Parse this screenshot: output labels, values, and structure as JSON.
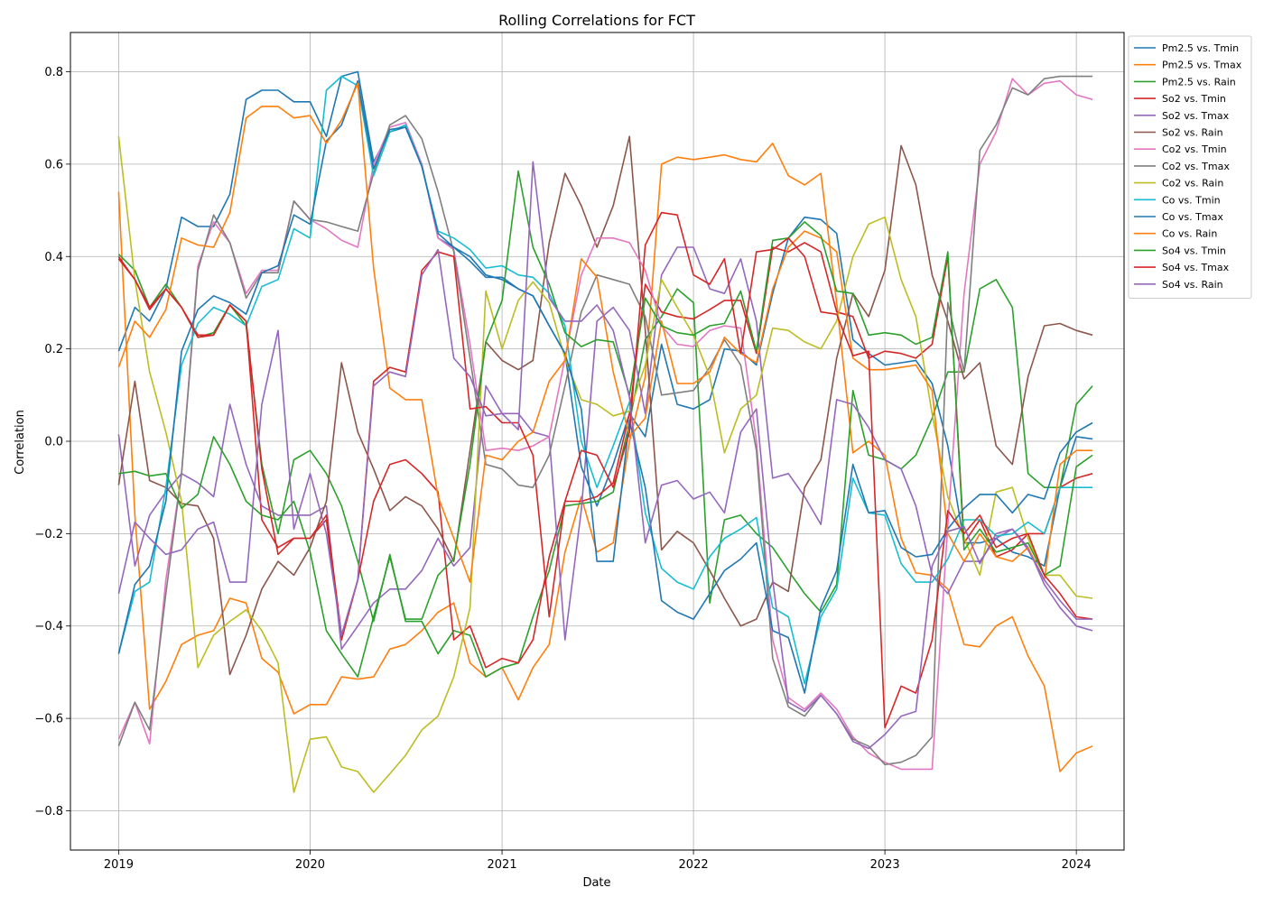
{
  "chart_data": {
    "type": "line",
    "title": "Rolling Correlations for FCT",
    "xlabel": "Date",
    "ylabel": "Correlation",
    "x_axis_kind": "date",
    "x_ticks": [
      "2019",
      "2020",
      "2021",
      "2022",
      "2023",
      "2024"
    ],
    "y_ticks": [
      "−0.8",
      "−0.6",
      "−0.4",
      "−0.2",
      "0.0",
      "0.2",
      "0.4",
      "0.6",
      "0.8"
    ],
    "xlim": [
      "2018-10-01",
      "2024-04-01"
    ],
    "ylim": [
      -0.885,
      0.885
    ],
    "grid": true,
    "legend_position": "upper right, outside plot area",
    "x": [
      "2019-01",
      "2019-02",
      "2019-03",
      "2019-04",
      "2019-05",
      "2019-06",
      "2019-07",
      "2019-08",
      "2019-09",
      "2019-10",
      "2019-11",
      "2019-12",
      "2020-01",
      "2020-02",
      "2020-03",
      "2020-04",
      "2020-05",
      "2020-06",
      "2020-07",
      "2020-08",
      "2020-09",
      "2020-10",
      "2020-11",
      "2020-12",
      "2021-01",
      "2021-02",
      "2021-03",
      "2021-04",
      "2021-05",
      "2021-06",
      "2021-07",
      "2021-08",
      "2021-09",
      "2021-10",
      "2021-11",
      "2021-12",
      "2022-01",
      "2022-02",
      "2022-03",
      "2022-04",
      "2022-05",
      "2022-06",
      "2022-07",
      "2022-08",
      "2022-09",
      "2022-10",
      "2022-11",
      "2022-12",
      "2023-01",
      "2023-02",
      "2023-03",
      "2023-04",
      "2023-05",
      "2023-06",
      "2023-07",
      "2023-08",
      "2023-09",
      "2023-10",
      "2023-11",
      "2023-12",
      "2024-01",
      "2024-02"
    ],
    "series": [
      {
        "name": "Pm2.5 vs. Tmin",
        "color": "#1f77b4",
        "values": [
          0.195,
          0.29,
          0.26,
          0.33,
          0.485,
          0.465,
          0.465,
          0.535,
          0.74,
          0.76,
          0.76,
          0.735,
          0.735,
          0.66,
          0.79,
          0.8,
          0.605,
          0.67,
          0.68,
          0.6,
          0.44,
          0.42,
          0.39,
          0.355,
          0.355,
          0.33,
          0.315,
          0.25,
          0.19,
          -0.055,
          -0.14,
          -0.05,
          0.06,
          0.01,
          0.21,
          0.08,
          0.07,
          0.09,
          0.2,
          0.195,
          0.165,
          0.32,
          0.44,
          0.485,
          0.48,
          0.45,
          0.22,
          0.19,
          0.165,
          0.17,
          0.175,
          0.125,
          -0.01,
          -0.22,
          -0.22,
          -0.21,
          -0.24,
          -0.25,
          -0.27,
          -0.1,
          0.01,
          0.005
        ]
      },
      {
        "name": "Pm2.5 vs. Tmax",
        "color": "#ff7f0e",
        "values": [
          0.54,
          -0.16,
          -0.58,
          -0.52,
          -0.44,
          -0.42,
          -0.41,
          -0.34,
          -0.35,
          -0.47,
          -0.5,
          -0.59,
          -0.57,
          -0.57,
          -0.51,
          -0.515,
          -0.51,
          -0.45,
          -0.44,
          -0.41,
          -0.37,
          -0.35,
          -0.48,
          -0.51,
          -0.49,
          -0.56,
          -0.49,
          -0.44,
          -0.24,
          -0.12,
          -0.24,
          -0.22,
          0.0,
          0.14,
          0.6,
          0.615,
          0.61,
          0.615,
          0.62,
          0.61,
          0.605,
          0.645,
          0.575,
          0.555,
          0.58,
          0.3,
          -0.025,
          0.0,
          -0.03,
          -0.21,
          -0.285,
          -0.29,
          -0.32,
          -0.44,
          -0.445,
          -0.4,
          -0.38,
          -0.465,
          -0.53,
          -0.715,
          -0.675,
          -0.66
        ]
      },
      {
        "name": "Pm2.5 vs. Rain",
        "color": "#2ca02c",
        "values": [
          0.405,
          0.37,
          0.29,
          0.34,
          0.29,
          0.225,
          0.235,
          0.295,
          0.25,
          -0.05,
          -0.2,
          -0.04,
          -0.02,
          -0.07,
          -0.14,
          -0.26,
          -0.39,
          -0.245,
          -0.39,
          -0.39,
          -0.46,
          -0.41,
          -0.42,
          -0.51,
          -0.49,
          -0.48,
          -0.38,
          -0.28,
          -0.14,
          -0.135,
          -0.13,
          -0.11,
          0.04,
          0.22,
          0.27,
          0.33,
          0.3,
          -0.35,
          -0.17,
          -0.16,
          -0.2,
          -0.23,
          -0.28,
          -0.33,
          -0.37,
          -0.31,
          0.11,
          -0.03,
          -0.04,
          -0.06,
          -0.03,
          0.05,
          0.15,
          0.15,
          0.33,
          0.35,
          0.29,
          -0.07,
          -0.1,
          -0.1,
          0.08,
          0.12
        ]
      },
      {
        "name": "So2 vs. Tmin",
        "color": "#d62728",
        "values": [
          0.4,
          0.35,
          0.29,
          0.33,
          0.29,
          0.23,
          0.23,
          0.295,
          0.26,
          -0.17,
          -0.23,
          -0.21,
          -0.21,
          -0.17,
          -0.43,
          -0.3,
          -0.13,
          -0.05,
          -0.04,
          -0.07,
          -0.11,
          -0.43,
          -0.4,
          -0.49,
          -0.47,
          -0.48,
          -0.43,
          -0.25,
          -0.13,
          -0.13,
          -0.12,
          -0.09,
          0.06,
          0.34,
          0.28,
          0.27,
          0.265,
          0.285,
          0.305,
          0.305,
          0.19,
          0.42,
          0.41,
          0.43,
          0.41,
          0.28,
          0.27,
          0.18,
          0.195,
          0.19,
          0.18,
          0.21,
          0.4,
          -0.22,
          -0.17,
          -0.25,
          -0.235,
          -0.2,
          -0.2,
          -0.1,
          -0.08,
          -0.07
        ]
      },
      {
        "name": "So2 vs. Tmax",
        "color": "#9467bd",
        "values": [
          0.015,
          -0.27,
          -0.16,
          -0.11,
          -0.07,
          -0.09,
          -0.12,
          0.08,
          -0.05,
          -0.14,
          -0.16,
          -0.16,
          -0.16,
          -0.14,
          -0.45,
          -0.4,
          -0.35,
          -0.32,
          -0.32,
          -0.28,
          -0.21,
          -0.27,
          -0.23,
          0.12,
          0.06,
          0.06,
          0.02,
          0.01,
          -0.43,
          -0.15,
          0.26,
          0.29,
          0.24,
          0.06,
          0.36,
          0.42,
          0.42,
          0.33,
          0.32,
          0.395,
          0.26,
          -0.08,
          -0.07,
          -0.12,
          -0.18,
          0.09,
          0.08,
          0.03,
          -0.04,
          -0.06,
          -0.14,
          -0.29,
          -0.33,
          -0.26,
          -0.26,
          -0.21,
          -0.19,
          -0.23,
          -0.31,
          -0.36,
          -0.4,
          -0.41
        ]
      },
      {
        "name": "So2 vs. Rain",
        "color": "#8c564b",
        "values": [
          -0.095,
          0.13,
          -0.085,
          -0.1,
          -0.135,
          -0.14,
          -0.21,
          -0.505,
          -0.42,
          -0.32,
          -0.26,
          -0.29,
          -0.23,
          -0.13,
          0.17,
          0.02,
          -0.06,
          -0.15,
          -0.12,
          -0.14,
          -0.19,
          -0.26,
          -0.02,
          0.215,
          0.175,
          0.155,
          0.175,
          0.43,
          0.58,
          0.51,
          0.42,
          0.51,
          0.66,
          0.24,
          -0.235,
          -0.195,
          -0.22,
          -0.28,
          -0.34,
          -0.4,
          -0.385,
          -0.305,
          -0.325,
          -0.1,
          -0.04,
          0.18,
          0.32,
          0.27,
          0.37,
          0.64,
          0.555,
          0.36,
          0.26,
          0.135,
          0.17,
          -0.01,
          -0.05,
          0.14,
          0.25,
          0.255,
          0.24,
          0.23
        ]
      },
      {
        "name": "Co2 vs. Tmin",
        "color": "#e377c2",
        "values": [
          -0.645,
          -0.565,
          -0.655,
          -0.3,
          -0.07,
          0.38,
          0.475,
          0.43,
          0.32,
          0.37,
          0.37,
          0.52,
          0.48,
          0.46,
          0.435,
          0.42,
          0.6,
          0.68,
          0.69,
          0.6,
          0.44,
          0.415,
          0.21,
          -0.02,
          -0.015,
          -0.02,
          -0.01,
          0.01,
          0.18,
          0.36,
          0.44,
          0.44,
          0.43,
          0.37,
          0.25,
          0.21,
          0.205,
          0.24,
          0.25,
          0.245,
          0.0,
          -0.43,
          -0.555,
          -0.58,
          -0.545,
          -0.58,
          -0.64,
          -0.675,
          -0.695,
          -0.71,
          -0.71,
          -0.71,
          -0.18,
          0.32,
          0.6,
          0.67,
          0.785,
          0.75,
          0.775,
          0.78,
          0.75,
          0.74
        ]
      },
      {
        "name": "Co2 vs. Tmax",
        "color": "#7f7f7f",
        "values": [
          -0.66,
          -0.565,
          -0.625,
          -0.33,
          -0.07,
          0.37,
          0.49,
          0.43,
          0.31,
          0.365,
          0.365,
          0.52,
          0.48,
          0.475,
          0.465,
          0.455,
          0.58,
          0.685,
          0.705,
          0.655,
          0.54,
          0.41,
          0.18,
          -0.05,
          -0.06,
          -0.095,
          -0.1,
          -0.03,
          0.12,
          0.28,
          0.36,
          0.35,
          0.34,
          0.27,
          0.1,
          0.105,
          0.11,
          0.16,
          0.22,
          0.165,
          -0.02,
          -0.47,
          -0.575,
          -0.595,
          -0.55,
          -0.59,
          -0.645,
          -0.66,
          -0.7,
          -0.695,
          -0.68,
          -0.64,
          0.3,
          0.15,
          0.63,
          0.685,
          0.765,
          0.75,
          0.785,
          0.79,
          0.79,
          0.79
        ]
      },
      {
        "name": "Co2 vs. Rain",
        "color": "#bcbd22",
        "values": [
          0.66,
          0.35,
          0.15,
          0.02,
          -0.13,
          -0.49,
          -0.42,
          -0.39,
          -0.365,
          -0.41,
          -0.48,
          -0.76,
          -0.645,
          -0.64,
          -0.705,
          -0.715,
          -0.76,
          -0.72,
          -0.68,
          -0.625,
          -0.595,
          -0.51,
          -0.36,
          0.325,
          0.2,
          0.305,
          0.345,
          0.3,
          0.18,
          0.09,
          0.08,
          0.055,
          0.065,
          0.165,
          0.35,
          0.29,
          0.23,
          0.14,
          -0.025,
          0.07,
          0.1,
          0.245,
          0.24,
          0.215,
          0.2,
          0.26,
          0.4,
          0.47,
          0.485,
          0.35,
          0.27,
          0.06,
          -0.12,
          -0.21,
          -0.29,
          -0.11,
          -0.1,
          -0.21,
          -0.29,
          -0.29,
          -0.335,
          -0.34
        ]
      },
      {
        "name": "Co vs. Tmin",
        "color": "#17becf",
        "values": [
          -0.46,
          -0.325,
          -0.305,
          -0.1,
          0.165,
          0.255,
          0.29,
          0.275,
          0.25,
          0.335,
          0.35,
          0.46,
          0.44,
          0.76,
          0.79,
          0.77,
          0.575,
          0.67,
          0.685,
          0.595,
          0.455,
          0.44,
          0.415,
          0.375,
          0.38,
          0.36,
          0.355,
          0.32,
          0.25,
          0.0,
          -0.1,
          -0.01,
          0.085,
          -0.155,
          -0.275,
          -0.305,
          -0.32,
          -0.25,
          -0.21,
          -0.19,
          -0.165,
          -0.36,
          -0.38,
          -0.525,
          -0.38,
          -0.32,
          -0.08,
          -0.155,
          -0.16,
          -0.265,
          -0.305,
          -0.305,
          -0.255,
          -0.17,
          -0.17,
          -0.205,
          -0.2,
          -0.175,
          -0.2,
          -0.1,
          -0.1,
          -0.1
        ]
      },
      {
        "name": "Co vs. Tmax",
        "color": "#1f77b4",
        "values": [
          -0.46,
          -0.31,
          -0.27,
          -0.13,
          0.195,
          0.285,
          0.315,
          0.3,
          0.275,
          0.365,
          0.38,
          0.49,
          0.47,
          0.65,
          0.685,
          0.78,
          0.59,
          0.675,
          0.68,
          0.595,
          0.45,
          0.42,
          0.4,
          0.36,
          0.35,
          0.33,
          0.315,
          0.25,
          0.19,
          0.07,
          -0.26,
          -0.26,
          0.045,
          -0.1,
          -0.345,
          -0.37,
          -0.385,
          -0.33,
          -0.28,
          -0.255,
          -0.22,
          -0.41,
          -0.425,
          -0.545,
          -0.36,
          -0.28,
          -0.05,
          -0.155,
          -0.15,
          -0.23,
          -0.25,
          -0.245,
          -0.19,
          -0.145,
          -0.115,
          -0.115,
          -0.155,
          -0.115,
          -0.125,
          -0.025,
          0.02,
          0.04
        ]
      },
      {
        "name": "Co vs. Rain",
        "color": "#ff7f0e",
        "values": [
          0.16,
          0.26,
          0.225,
          0.285,
          0.44,
          0.425,
          0.42,
          0.495,
          0.7,
          0.725,
          0.725,
          0.7,
          0.705,
          0.645,
          0.695,
          0.775,
          0.375,
          0.115,
          0.09,
          0.09,
          -0.12,
          -0.21,
          -0.305,
          -0.03,
          -0.04,
          0.0,
          0.02,
          0.13,
          0.175,
          0.395,
          0.355,
          0.15,
          0.01,
          0.05,
          0.26,
          0.125,
          0.125,
          0.15,
          0.225,
          0.19,
          0.17,
          0.33,
          0.42,
          0.455,
          0.44,
          0.41,
          0.18,
          0.155,
          0.155,
          0.16,
          0.165,
          0.11,
          -0.2,
          -0.26,
          -0.2,
          -0.25,
          -0.26,
          -0.23,
          -0.3,
          -0.05,
          -0.02,
          -0.02
        ]
      },
      {
        "name": "So4 vs. Tmin",
        "color": "#2ca02c",
        "values": [
          -0.07,
          -0.065,
          -0.075,
          -0.07,
          -0.145,
          -0.115,
          0.01,
          -0.05,
          -0.13,
          -0.16,
          -0.17,
          -0.13,
          -0.24,
          -0.41,
          -0.46,
          -0.51,
          -0.38,
          -0.25,
          -0.385,
          -0.385,
          -0.29,
          -0.255,
          -0.05,
          0.215,
          0.305,
          0.585,
          0.42,
          0.34,
          0.235,
          0.205,
          0.22,
          0.215,
          0.1,
          0.31,
          0.25,
          0.235,
          0.23,
          0.25,
          0.255,
          0.325,
          0.195,
          0.435,
          0.44,
          0.475,
          0.445,
          0.325,
          0.32,
          0.23,
          0.235,
          0.23,
          0.21,
          0.225,
          0.41,
          -0.235,
          -0.19,
          -0.24,
          -0.23,
          -0.22,
          -0.29,
          -0.27,
          -0.055,
          -0.03
        ]
      },
      {
        "name": "So4 vs. Tmax",
        "color": "#d62728",
        "values": [
          0.395,
          0.35,
          0.285,
          0.33,
          0.29,
          0.225,
          0.23,
          0.295,
          0.26,
          -0.06,
          -0.245,
          -0.21,
          -0.21,
          -0.16,
          -0.42,
          -0.3,
          0.13,
          0.16,
          0.15,
          0.37,
          0.41,
          0.4,
          0.07,
          0.075,
          0.04,
          0.04,
          -0.03,
          -0.38,
          -0.13,
          -0.02,
          -0.03,
          -0.1,
          0.02,
          0.425,
          0.495,
          0.49,
          0.36,
          0.34,
          0.395,
          0.19,
          0.41,
          0.415,
          0.44,
          0.4,
          0.28,
          0.275,
          0.185,
          0.195,
          -0.62,
          -0.53,
          -0.545,
          -0.43,
          -0.15,
          -0.2,
          -0.16,
          -0.23,
          -0.21,
          -0.2,
          -0.29,
          -0.33,
          -0.38,
          -0.385
        ]
      },
      {
        "name": "So4 vs. Rain",
        "color": "#9467bd",
        "values": [
          -0.33,
          -0.175,
          -0.21,
          -0.245,
          -0.235,
          -0.19,
          -0.175,
          -0.305,
          -0.305,
          0.08,
          0.24,
          -0.19,
          -0.07,
          -0.2,
          -0.42,
          -0.3,
          0.12,
          0.15,
          0.14,
          0.36,
          0.415,
          0.18,
          0.14,
          0.055,
          0.06,
          0.025,
          0.605,
          0.31,
          0.26,
          0.26,
          0.295,
          0.24,
          0.095,
          -0.22,
          -0.095,
          -0.085,
          -0.125,
          -0.11,
          -0.155,
          0.02,
          0.07,
          -0.3,
          -0.565,
          -0.585,
          -0.55,
          -0.59,
          -0.65,
          -0.665,
          -0.635,
          -0.595,
          -0.585,
          -0.27,
          -0.195,
          -0.185,
          -0.265,
          -0.2,
          -0.19,
          -0.235,
          -0.3,
          -0.345,
          -0.385,
          -0.385
        ]
      }
    ]
  }
}
